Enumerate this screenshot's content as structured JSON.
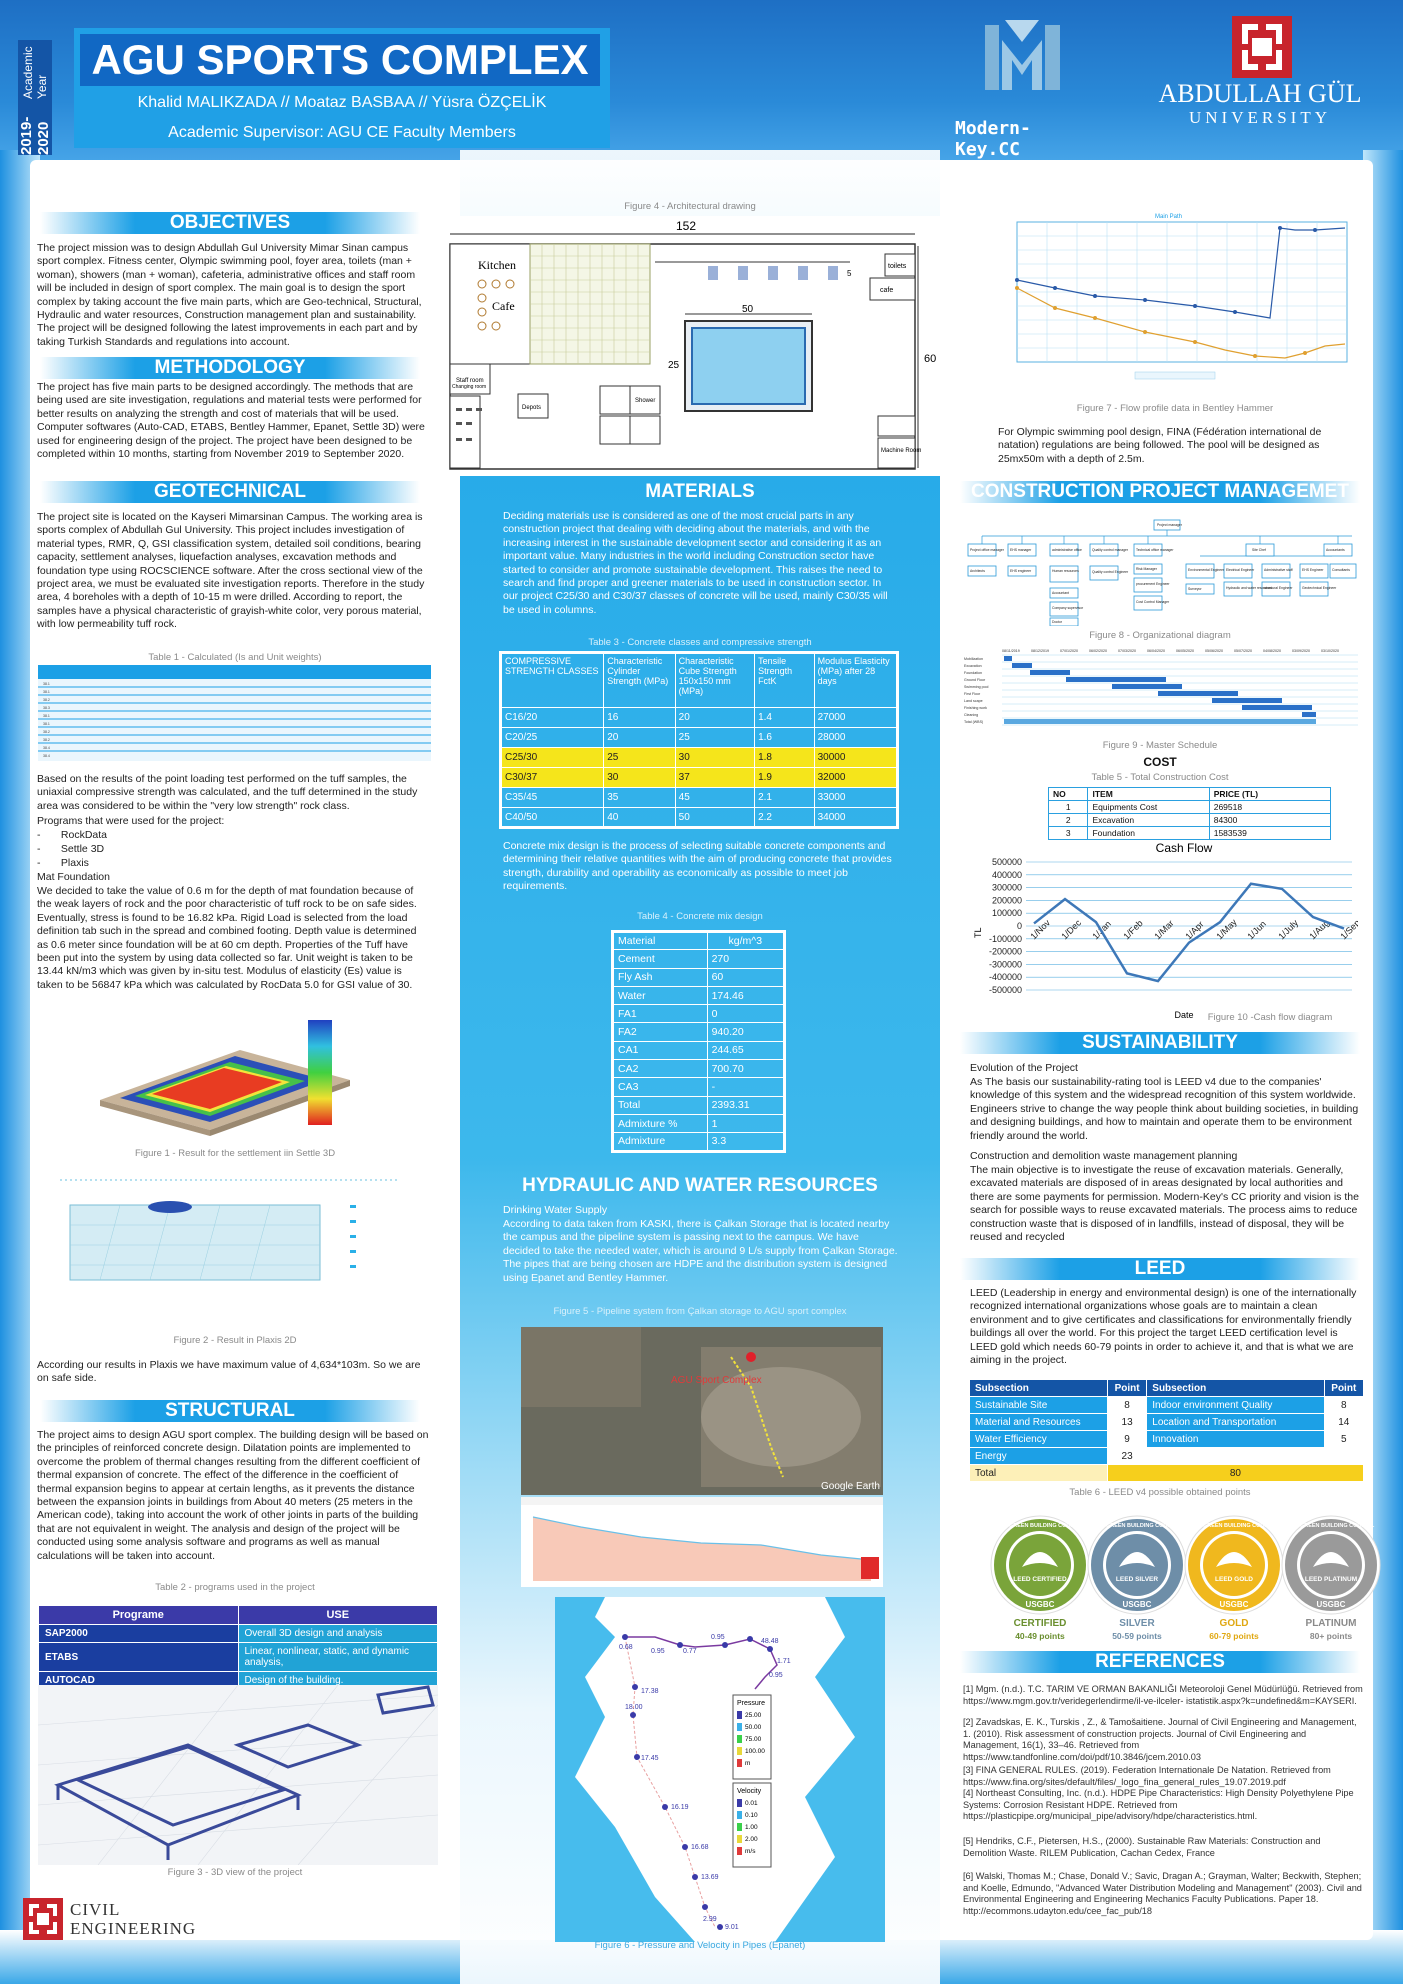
{
  "header": {
    "year_main": "2019-2020",
    "year_sub": "Academic Year",
    "title": "AGU SPORTS COMPLEX",
    "authors": "Khalid MALIKZADA // Moataz BASBAA // Yüsra ÖZÇELİK",
    "supervisor": "Academic Supervisor: AGU CE Faculty Members",
    "brand_logo_text": "Modern-Key.CC",
    "university_name": "ABDULLAH GÜL",
    "university_sub": "UNIVERSITY"
  },
  "colors": {
    "primary": "#1ca0e6",
    "dark": "#1455a6",
    "highlight": "#f5e51b",
    "gold": "#f6cf1c"
  },
  "objectives": {
    "title": "OBJECTIVES",
    "body": "The project mission was to design Abdullah Gul University Mimar Sinan campus sport complex.  Fitness center, Olympic swimming pool, foyer area, toilets (man + woman), showers (man + woman), cafeteria, administrative offices and staff room will be included in design of sport complex. The main goal is to design the sport complex by taking account the five main parts, which are Geo-technical, Structural, Hydraulic and water resources, Construction management plan and sustainability. The project will be designed following the latest improvements in each part and by taking Turkish Standards and regulations into account."
  },
  "methodology": {
    "title": "METHODOLOGY",
    "body": "The project has five main parts to be designed accordingly. The methods that are being used are site investigation, regulations and material tests were performed for better results on analyzing the strength and cost of materials that will be used. Computer softwares (Auto-CAD, ETABS, Bentley Hammer, Epanet, Settle 3D) were used for engineering design of the project. The project have been designed to be completed within 10 months, starting from November 2019 to September 2020."
  },
  "geotechnical": {
    "title": "GEOTECHNICAL",
    "body": "The project site is located on the Kayseri Mimarsinan Campus. The working area is sports complex of Abdullah Gul University. This project includes investigation of material types, RMR, Q, GSI classification system, detailed soil conditions, bearing capacity, settlement analyses, liquefaction analyses, excavation methods and foundation type using ROCSCIENCE software. After the cross sectional view of the project area, we must be evaluated site investigation reports. Therefore in the study area, 4 boreholes with a depth of 10-15 m were drilled. According to report, the samples have a physical characteristic of grayish-white color, very porous material, with low permeability tuff rock.",
    "table1_caption": "Table 1 - Calculated (Is and Unit weights)",
    "body2": "Based on the results of the point loading test performed on the tuff samples, the uniaxial compressive strength was calculated, and the tuff determined in the study area was considered to be within the \"very low strength\" rock class.",
    "programs_intro": "Programs that were used for the project:",
    "programs": [
      "RockData",
      "Settle 3D",
      "Plaxis"
    ],
    "mat_title": "Mat Foundation",
    "body3": "We decided to take the value of 0.6 m for the depth of mat foundation because of the weak layers of rock and the poor characteristic of tuff rock to be on safe sides. Eventually, stress is found to be 16.82 kPa. Rigid Load is selected from the load definition tab such in the spread and combined footing. Depth value is determined as 0.6 meter since foundation will be at 60 cm depth. Properties of the Tuff have been put into the system by using data collected so far. Unit weight is taken to be 13.44 kN/m3 which was given by in-situ test. Modulus of elasticity (Es) value is taken to be 56847 kPa which was calculated by RocData 5.0 for GSI value of 30.",
    "fig1_caption": "Figure 1 - Result for the settlement iin Settle 3D",
    "fig2_caption": "Figure 2 - Result in Plaxis 2D",
    "body4": "According our results in Plaxis we have maximum value of 4,634*103m. So we are on safe side."
  },
  "structural": {
    "title": "STRUCTURAL",
    "body": "The project aims to design AGU sport complex. The building design will be based on the principles of reinforced concrete design. Dilatation points are implemented to overcome the problem of thermal changes resulting from the different coefficient of thermal expansion of concrete. The effect of the difference in the coefficient of thermal expansion begins to appear at certain lengths, as it prevents the distance between the expansion joints in buildings from About 40 meters (25 meters in the American code), taking into account the work of other joints in parts of the building that are not equivalent in weight. The analysis and design of the project will be conducted using some analysis software and programs as well as manual calculations will be taken into account.",
    "table2_caption": "Table 2 - programs used in the project",
    "table2_headers": [
      "Programe",
      "USE"
    ],
    "table2_rows": [
      [
        "SAP2000",
        "Overall 3D design and analysis"
      ],
      [
        "ETABS",
        "Linear, nonlinear, static, and dynamic analysis,"
      ],
      [
        "AUTOCAD",
        "Design of the building."
      ]
    ],
    "fig3_caption": "Figure 3 - 3D view of the project"
  },
  "architecture": {
    "fig4_caption": "Figure 4 - Architectural drawing",
    "dim_152": "152",
    "dim_50": "50",
    "dim_25": "25",
    "dim_60": "60",
    "dim_5": "5",
    "kitchen": "Kitchen",
    "cafe": "Cafe",
    "toilets": "toilets",
    "cafe2": "cafe",
    "staff_room": "Staff room",
    "changing_room": "Changing room",
    "depots": "Depots",
    "shower": "Shower",
    "machine_room": "Machine Room"
  },
  "flow": {
    "fig7_caption": "Figure 7 - Flow profile data in Bentley Hammer",
    "chart_title": "Main Path",
    "body": "For Olympic swimming pool design, FINA (Fédération international de natation) regulations are being followed. The pool will be designed as 25mx50m with a depth of 2.5m."
  },
  "materials": {
    "title": "MATERIALS",
    "body": "Deciding materials use is considered as one of the most crucial parts in any construction project that dealing with deciding about the materials, and with the increasing interest in the sustainable development sector and considering it as an important value. Many industries in the world including Construction sector have started to consider and promote sustainable development. This raises the need to search and find proper and greener materials to be used in construction sector. In our project C25/30 and C30/37 classes of concrete will be used, mainly C30/35 will be used in columns.",
    "table3_caption": "Table 3 - Concrete classes and compressive strength",
    "table3_headers": [
      "COMPRESSIVE STRENGTH CLASSES",
      "Characteristic Cylinder Strength (MPa)",
      "Characteristic Cube Strength 150x150 mm (MPa)",
      "Tensile Strength FctK",
      "Modulus Elasticity (MPa) after 28 days"
    ],
    "table3_rows": [
      [
        "C16/20",
        "16",
        "20",
        "1.4",
        "27000"
      ],
      [
        "C20/25",
        "20",
        "25",
        "1.6",
        "28000"
      ],
      [
        "C25/30",
        "25",
        "30",
        "1.8",
        "30000"
      ],
      [
        "C30/37",
        "30",
        "37",
        "1.9",
        "32000"
      ],
      [
        "C35/45",
        "35",
        "45",
        "2.1",
        "33000"
      ],
      [
        "C40/50",
        "40",
        "50",
        "2.2",
        "34000"
      ]
    ],
    "body2": "Concrete mix design is the process of selecting suitable concrete components and determining their relative quantities with the aim of producing concrete that provides strength, durability and operability as economically as possible to meet job requirements.",
    "table4_caption": "Table 4 - Concrete mix design",
    "table4_headers": [
      "Material",
      "kg/m^3"
    ],
    "table4_rows": [
      [
        "Cement",
        "270"
      ],
      [
        "Fly Ash",
        "60"
      ],
      [
        "Water",
        "174.46"
      ],
      [
        "FA1",
        "0"
      ],
      [
        "FA2",
        "940.20"
      ],
      [
        "CA1",
        "244.65"
      ],
      [
        "CA2",
        "700.70"
      ],
      [
        "CA3",
        "-"
      ],
      [
        "Total",
        "2393.31"
      ],
      [
        "Admixture %",
        "1"
      ],
      [
        "Admixture",
        "3.3"
      ]
    ]
  },
  "hydraulic": {
    "title": "HYDRAULIC AND WATER RESOURCES",
    "subtitle": "Drinking Water Supply",
    "body": "According to data taken from KASKI, there is Çalkan Storage that is located nearby the campus and the pipeline system is passing next to the campus. We have decided to take the needed water, which is around 9 L/s supply from Çalkan Storage. The pipes that are being chosen are HDPE and the distribution system is designed using Epanet and Bentley Hammer.",
    "fig5_caption": "Figure 5 - Pipeline system from Çalkan storage to AGU sport complex",
    "map_label": "AGU Sport Complex",
    "map_google": "Google Earth",
    "fig6_caption": "Figure 6 - Pressure and Velocity in Pipes (Epanet)",
    "pressure_title": "Pressure",
    "pressure_levels": [
      "25.00",
      "50.00",
      "75.00",
      "100.00",
      "m"
    ],
    "velocity_title": "Velocity",
    "velocity_levels": [
      "0.01",
      "0.10",
      "1.00",
      "2.00",
      "m/s"
    ],
    "node_values": [
      "0.68",
      "0.95",
      "0.77",
      "0.95",
      "48.48",
      "17.38",
      "18.00",
      "17.45",
      "16.19",
      "16.68",
      "13.69",
      "2.99",
      "9.01",
      "1.71",
      "0.95"
    ]
  },
  "cpm": {
    "title": "CONSTRUCTION PROJECT MANAGEMET",
    "org_nodes": [
      "Project manager",
      "Project office manager",
      "EHS manager",
      "administrative office",
      "Quality control manager",
      "Technical office manager",
      "Site Chef",
      "Accountants",
      "Architects",
      "EHS engineer",
      "Human resources",
      "Quality control Engineer",
      "Risk Manager",
      "procurement Engineer",
      "Cost Control Manager",
      "Environmental Engineer",
      "Electrical Engineer",
      "Administrative staff",
      "EHS Engineer",
      "Consultants",
      "Accountant",
      "Company supervisor",
      "Doctor",
      "Surveyor",
      "Hydraulic and water resources",
      "structural Engineer",
      "Geotechnical Engineer"
    ],
    "fig8_caption": "Figure 8 - Organizational diagram",
    "schedule_dates": [
      "08/11/2019",
      "08/12/2019",
      "07/01/2020",
      "06/02/2020",
      "07/03/2020",
      "06/04/2020",
      "06/05/2020",
      "05/06/2020",
      "05/07/2020",
      "04/08/2020",
      "03/09/2020",
      "03/10/2020"
    ],
    "schedule_tasks": [
      "Mobilization",
      "Excavation",
      "Foundation",
      "Ground Floor",
      "Swimming pool",
      "First Floor",
      "Land scape",
      "Finishing work",
      "Cleaning",
      "Total (WBS)"
    ],
    "fig9_caption": "Figure 9 - Master Schedule",
    "cost_title": "COST",
    "table5_caption": "Table 5 - Total Construction Cost",
    "table5_headers": [
      "NO",
      "ITEM",
      "PRICE (TL)"
    ],
    "table5_rows": [
      [
        "1",
        "Equipments Cost",
        "269518"
      ],
      [
        "2",
        "Excavation",
        "84300"
      ],
      [
        "3",
        "Foundation",
        "1583539"
      ]
    ],
    "fig10_caption": "Figure 10 -Cash flow diagram"
  },
  "chart_data": {
    "type": "line",
    "title": "Cash Flow",
    "xlabel": "Date",
    "ylabel": "TL",
    "categories": [
      "1/Nov",
      "1/Dec",
      "1/Jan",
      "1/Feb",
      "1/Mar",
      "1/Apr",
      "1/May",
      "1/Jun",
      "1/July",
      "1/Aug",
      "1/Sep"
    ],
    "values": [
      20000,
      210000,
      30000,
      -370000,
      -430000,
      -130000,
      30000,
      330000,
      290000,
      70000,
      -20000
    ],
    "yticks": [
      "500000",
      "400000",
      "300000",
      "200000",
      "100000",
      "0",
      "-100000",
      "-200000",
      "-300000",
      "-400000",
      "-500000"
    ],
    "ylim": [
      -500000,
      500000
    ],
    "grid": true
  },
  "sustainability": {
    "title": "SUSTAINABILITY",
    "sub1": "Evolution of the Project",
    "body1": "As The basis our sustainability-rating tool is LEED v4 due to the companies' knowledge of this system and the widespread recognition of this system worldwide. Engineers strive to change the way people think about building societies, in building and designing buildings, and how to maintain and operate them to be environment friendly around the world.",
    "sub2": "Construction and demolition waste management planning",
    "body2": "The main objective is to investigate the reuse of excavation materials. Generally, excavated materials are disposed of in areas designated by local authorities and there are some payments for permission. Modern-Key's CC priority and vision is the search for possible ways to reuse excavated materials. The process aims to reduce construction waste that is disposed of in landfills, instead of disposal, they will be reused and recycled"
  },
  "leed": {
    "title": "LEED",
    "body": "LEED (Leadership in energy and environmental design) is one of the internationally recognized international organizations whose goals are to maintain a clean environment and to give certificates and classifications for environmentally friendly buildings all over the world. For this project the target LEED certification level is LEED gold which needs    60-79 points in order to achieve it, and that is what we are aiming in the project.",
    "table6_headers": [
      "Subsection",
      "Point",
      "Subsection",
      "Point"
    ],
    "table6_rows": [
      [
        "Sustainable Site",
        "8",
        "Indoor environment Quality",
        "8"
      ],
      [
        "Material and Resources",
        "13",
        "Location and Transportation",
        "14"
      ],
      [
        "Water Efficiency",
        "9",
        "Innovation",
        "5"
      ],
      [
        "Energy",
        "23",
        "",
        ""
      ]
    ],
    "table6_total_label": "Total",
    "table6_total": "80",
    "table6_caption": "Table 6 - LEED v4 possible obtained points",
    "badges": [
      {
        "label": "CERTIFIED",
        "points": "40-49 points",
        "inner": "LEED CERTIFIED",
        "ring": "U.S. GREEN BUILDING COUNCIL",
        "usgbc": "USGBC",
        "color": "#7aa43a",
        "text_color": "#6a8f2f"
      },
      {
        "label": "SILVER",
        "points": "50-59 points",
        "inner": "LEED SILVER",
        "ring": "U.S. GREEN BUILDING COUNCIL",
        "usgbc": "USGBC",
        "color": "#6e8ea8",
        "text_color": "#6e8ea8"
      },
      {
        "label": "GOLD",
        "points": "60-79 points",
        "inner": "LEED GOLD",
        "ring": "U.S. GREEN BUILDING COUNCIL",
        "usgbc": "USGBC",
        "color": "#f0b81e",
        "text_color": "#e0a812"
      },
      {
        "label": "PLATINUM",
        "points": "80+ points",
        "inner": "LEED PLATINUM",
        "ring": "U.S. GREEN BUILDING COUNCIL",
        "usgbc": "USGBC",
        "color": "#9a9a9a",
        "text_color": "#8a8a8a"
      }
    ]
  },
  "references": {
    "title": "REFERENCES",
    "items": [
      "[1] Mgm. (n.d.). T.C. TARIM VE ORMAN BAKANLIĞI Meteoroloji Genel Müdürlüğü. Retrieved from https://www.mgm.gov.tr/veridegerlendirme/il-ve-ilceler- istatistik.aspx?k=undefined&m=KAYSERI.",
      "[2] Zavadskas, E. K., Turskis , Z., & Tamošaitiene. Journal of Civil Engineering and Management, 1. (2010). Risk assessment of construction projects. Journal of Civil Engineering and Management, 16(1), 33–46. Retrieved from https://www.tandfonline.com/doi/pdf/10.3846/jcem.2010.03",
      "[3] FINA GENERAL RULES. (2019). Federation Internationale De Natation. Retrieved from https://www.fina.org/sites/default/files/_logo_fina_general_rules_19.07.2019.pdf\n[4] Northeast Consulting, Inc. (n.d.). HDPE Pipe Characteristics: High Density Polyethylene Pipe Systems: Corrosion Resistant HDPE. Retrieved from https://plasticpipe.org/municipal_pipe/advisory/hdpe/characteristics.html.",
      "[5] Hendriks, C.F., Pietersen, H.S., (2000). Sustainable Raw Materials: Construction and Demolition Waste. RILEM Publication, Cachan Cedex, France",
      "[6] Walski, Thomas M.; Chase, Donald V.; Savic, Dragan A.; Grayman, Walter; Beckwith, Stephen; and Koelle, Edmundo, \"Advanced Water Distribution Modeling and Management\" (2003). Civil and Environmental Engineering and Engineering Mechanics Faculty Publications. Paper 18. http://ecommons.udayton.edu/cee_fac_pub/18"
    ]
  },
  "footer": {
    "line1": "CIVIL",
    "line2": "ENGINEERING"
  }
}
